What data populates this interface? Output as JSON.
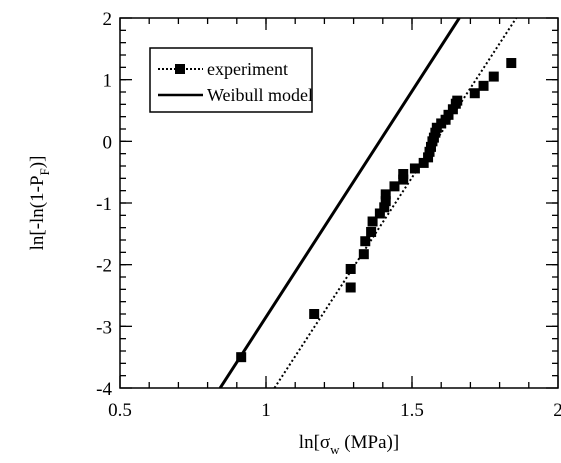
{
  "chart_data": {
    "type": "scatter",
    "xlabel": {
      "main": "ln[σ",
      "sub": "w",
      "tail": " (MPa)]"
    },
    "ylabel": {
      "main": "ln[-ln(1-P",
      "sub": "F",
      "tail": ")]"
    },
    "xlim": [
      0.5,
      2
    ],
    "ylim": [
      -4,
      2
    ],
    "x_ticks": [
      0.5,
      1,
      1.5,
      2
    ],
    "x_tick_labels": [
      "0.5",
      "1",
      "1.5",
      "2"
    ],
    "y_ticks": [
      -4,
      -3,
      -2,
      -1,
      0,
      1,
      2
    ],
    "y_tick_labels": [
      "-4",
      "-3",
      "-2",
      "-1",
      "0",
      "1",
      "2"
    ],
    "grid": false,
    "legend_position": "top-left",
    "series": [
      {
        "name": "experiment",
        "style": "dotted-square-markers",
        "color": "#000000",
        "fit_line": {
          "x": [
            1.029,
            1.857
          ],
          "y": [
            -4,
            2
          ]
        },
        "points": [
          [
            0.915,
            -3.5
          ],
          [
            1.165,
            -2.8
          ],
          [
            1.29,
            -2.37
          ],
          [
            1.29,
            -2.07
          ],
          [
            1.335,
            -1.83
          ],
          [
            1.34,
            -1.62
          ],
          [
            1.36,
            -1.47
          ],
          [
            1.365,
            -1.3
          ],
          [
            1.39,
            -1.17
          ],
          [
            1.405,
            -1.07
          ],
          [
            1.41,
            -0.97
          ],
          [
            1.41,
            -0.86
          ],
          [
            1.44,
            -0.73
          ],
          [
            1.47,
            -0.62
          ],
          [
            1.47,
            -0.53
          ],
          [
            1.51,
            -0.44
          ],
          [
            1.54,
            -0.35
          ],
          [
            1.555,
            -0.26
          ],
          [
            1.56,
            -0.17
          ],
          [
            1.565,
            -0.09
          ],
          [
            1.57,
            0.0
          ],
          [
            1.575,
            0.06
          ],
          [
            1.58,
            0.14
          ],
          [
            1.585,
            0.22
          ],
          [
            1.6,
            0.29
          ],
          [
            1.615,
            0.35
          ],
          [
            1.625,
            0.43
          ],
          [
            1.64,
            0.52
          ],
          [
            1.65,
            0.61
          ],
          [
            1.655,
            0.66
          ],
          [
            1.715,
            0.78
          ],
          [
            1.745,
            0.9
          ],
          [
            1.78,
            1.05
          ],
          [
            1.84,
            1.27
          ]
        ]
      },
      {
        "name": "Weibull model",
        "style": "solid",
        "color": "#000000",
        "line": {
          "x": [
            0.843,
            1.662
          ],
          "y": [
            -4,
            2
          ]
        }
      }
    ]
  }
}
